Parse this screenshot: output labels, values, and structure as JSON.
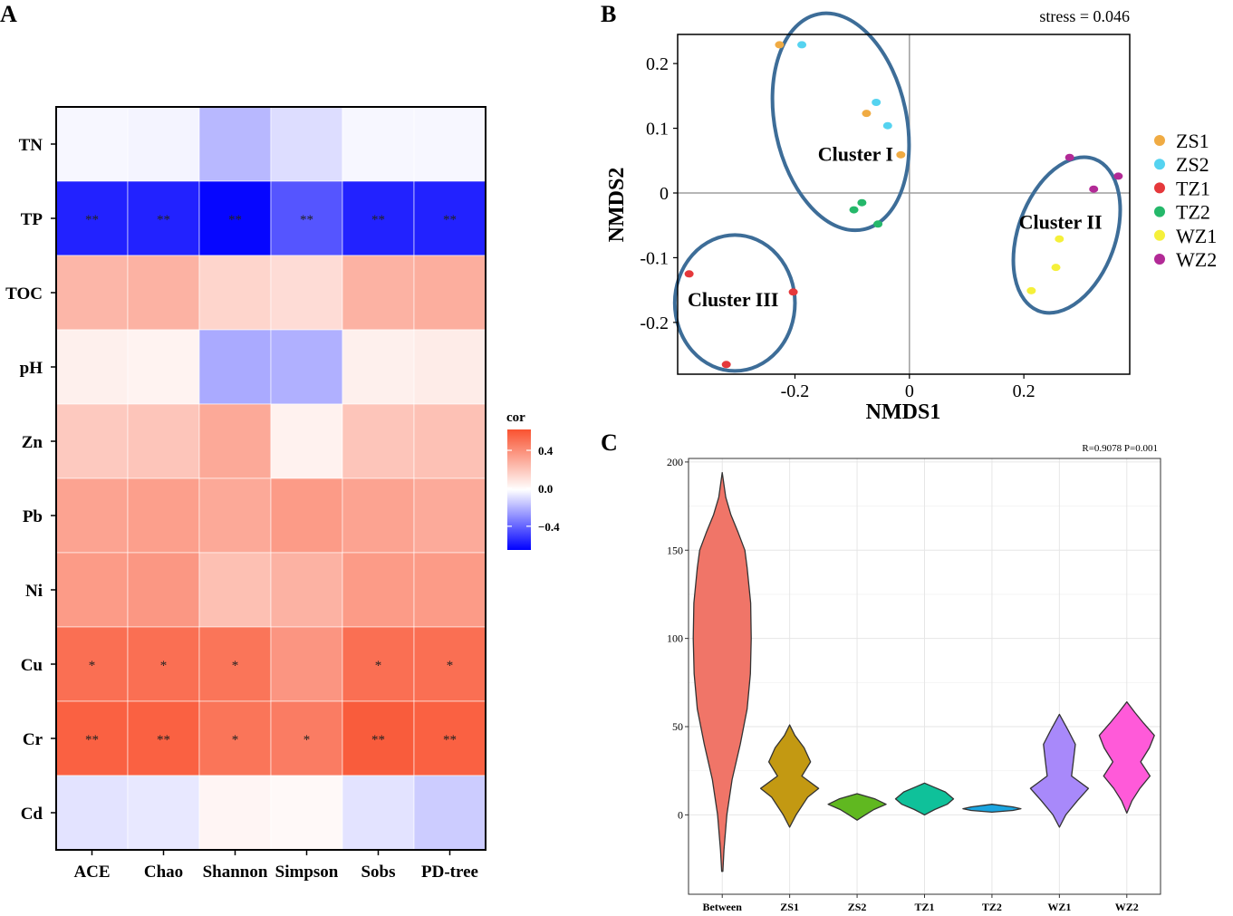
{
  "panels": {
    "a": "A",
    "b": "B",
    "c": "C"
  },
  "colors": {
    "neg": "#0000ff",
    "mid": "#ffffff",
    "pos": "#f95230",
    "ellipse": "#3d6d98",
    "axis_zero": "#9e9e9e",
    "violin_outline": "#333333",
    "grid": "#e6e6e6",
    "star": "#222222"
  },
  "chart_data": [
    {
      "type": "heatmap",
      "panel": "A",
      "columns": [
        "ACE",
        "Chao",
        "Shannon",
        "Simpson",
        "Sobs",
        "PD-tree"
      ],
      "rows": [
        "TN",
        "TP",
        "TOC",
        "pH",
        "Zn",
        "Pb",
        "Ni",
        "Cu",
        "Cr",
        "Cd"
      ],
      "values": [
        [
          -0.03,
          -0.04,
          -0.25,
          -0.12,
          -0.03,
          -0.03
        ],
        [
          -0.78,
          -0.78,
          -0.88,
          -0.6,
          -0.78,
          -0.78
        ],
        [
          0.38,
          0.4,
          0.22,
          0.18,
          0.4,
          0.42
        ],
        [
          0.08,
          0.06,
          -0.3,
          -0.28,
          0.08,
          0.1
        ],
        [
          0.28,
          0.3,
          0.45,
          0.07,
          0.3,
          0.32
        ],
        [
          0.48,
          0.5,
          0.45,
          0.52,
          0.48,
          0.44
        ],
        [
          0.52,
          0.54,
          0.33,
          0.4,
          0.52,
          0.52
        ],
        [
          0.75,
          0.75,
          0.72,
          0.55,
          0.75,
          0.75
        ],
        [
          0.82,
          0.82,
          0.72,
          0.68,
          0.85,
          0.82
        ],
        [
          -0.1,
          -0.08,
          0.05,
          0.03,
          -0.1,
          -0.18
        ]
      ],
      "significance": [
        [
          "",
          "",
          "",
          "",
          "",
          ""
        ],
        [
          "**",
          "**",
          "**",
          "**",
          "**",
          "**"
        ],
        [
          "",
          "",
          "",
          "",
          "",
          ""
        ],
        [
          "",
          "",
          "",
          "",
          "",
          ""
        ],
        [
          "",
          "",
          "",
          "",
          "",
          ""
        ],
        [
          "",
          "",
          "",
          "",
          "",
          ""
        ],
        [
          "",
          "",
          "",
          "",
          "",
          ""
        ],
        [
          "*",
          "*",
          "*",
          "",
          "*",
          "*"
        ],
        [
          "**",
          "**",
          "*",
          "*",
          "**",
          "**"
        ],
        [
          "",
          "",
          "",
          "",
          "",
          ""
        ]
      ],
      "legend": {
        "title": "cor",
        "range": [
          -0.65,
          0.62
        ],
        "ticks": [
          0.4,
          0.0,
          -0.4
        ],
        "tick_labels": [
          "0.4",
          "0.0",
          "−0.4"
        ]
      }
    },
    {
      "type": "scatter",
      "panel": "B",
      "xlabel": "NMDS1",
      "ylabel": "NMDS2",
      "annotation": "stress = 0.046",
      "xlim": [
        -0.405,
        0.385
      ],
      "ylim": [
        -0.28,
        0.245
      ],
      "xticks": [
        -0.2,
        0.0,
        0.2
      ],
      "xtick_labels": [
        "-0.2",
        "0",
        "0.2"
      ],
      "yticks": [
        0.2,
        0.1,
        0.0,
        -0.1,
        -0.2
      ],
      "ytick_labels": [
        "0.2",
        "0.1",
        "0",
        "-0.1",
        "-0.2"
      ],
      "legend_position": "right",
      "series": [
        {
          "name": "ZS1",
          "color": "#f0ab43",
          "points": [
            [
              -0.227,
              0.229
            ],
            [
              -0.075,
              0.123
            ],
            [
              -0.015,
              0.059
            ]
          ]
        },
        {
          "name": "ZS2",
          "color": "#55d3f0",
          "points": [
            [
              -0.188,
              0.229
            ],
            [
              -0.058,
              0.14
            ],
            [
              -0.038,
              0.104
            ]
          ]
        },
        {
          "name": "TZ1",
          "color": "#e5383b",
          "points": [
            [
              -0.385,
              -0.125
            ],
            [
              -0.203,
              -0.153
            ],
            [
              -0.32,
              -0.265
            ]
          ]
        },
        {
          "name": "TZ2",
          "color": "#25b86a",
          "points": [
            [
              -0.083,
              -0.015
            ],
            [
              -0.097,
              -0.026
            ],
            [
              -0.055,
              -0.048
            ]
          ]
        },
        {
          "name": "WZ1",
          "color": "#f5f03a",
          "points": [
            [
              0.262,
              -0.071
            ],
            [
              0.256,
              -0.115
            ],
            [
              0.213,
              -0.151
            ]
          ]
        },
        {
          "name": "WZ2",
          "color": "#b22a96",
          "points": [
            [
              0.28,
              0.055
            ],
            [
              0.322,
              0.006
            ],
            [
              0.365,
              0.026
            ]
          ]
        }
      ],
      "clusters": [
        {
          "label": "Cluster I",
          "center": [
            -0.12,
            0.11
          ],
          "rx": 0.115,
          "ry": 0.17,
          "angle_deg": -12
        },
        {
          "label": "Cluster II",
          "center": [
            0.275,
            -0.065
          ],
          "rx": 0.085,
          "ry": 0.125,
          "angle_deg": 20
        },
        {
          "label": "Cluster III",
          "center": [
            -0.305,
            -0.17
          ],
          "rx": 0.105,
          "ry": 0.105,
          "angle_deg": 0
        }
      ]
    },
    {
      "type": "violin",
      "panel": "C",
      "annotation": "R=0.9078  P=0.001",
      "ylim": [
        -45,
        202
      ],
      "yticks": [
        0,
        50,
        100,
        150,
        200
      ],
      "ytick_labels": [
        "0",
        "50",
        "100",
        "150",
        "200"
      ],
      "categories": [
        "Between",
        "ZS1",
        "ZS2",
        "TZ1",
        "TZ2",
        "WZ1",
        "WZ2"
      ],
      "series": [
        {
          "name": "Between",
          "color": "#f07568",
          "min": -32,
          "max": 194,
          "profile": [
            [
              -32,
              0.02
            ],
            [
              -20,
              0.06
            ],
            [
              0,
              0.16
            ],
            [
              20,
              0.34
            ],
            [
              40,
              0.62
            ],
            [
              60,
              0.86
            ],
            [
              80,
              0.97
            ],
            [
              100,
              1.0
            ],
            [
              120,
              0.98
            ],
            [
              140,
              0.86
            ],
            [
              150,
              0.78
            ],
            [
              160,
              0.55
            ],
            [
              170,
              0.3
            ],
            [
              180,
              0.12
            ],
            [
              194,
              0.0
            ]
          ]
        },
        {
          "name": "ZS1",
          "color": "#c39912",
          "min": -7,
          "max": 51,
          "profile": [
            [
              -7,
              0.0
            ],
            [
              0,
              0.22
            ],
            [
              10,
              0.62
            ],
            [
              15,
              1.0
            ],
            [
              22,
              0.42
            ],
            [
              30,
              0.72
            ],
            [
              38,
              0.5
            ],
            [
              45,
              0.18
            ],
            [
              51,
              0.0
            ]
          ]
        },
        {
          "name": "ZS2",
          "color": "#60b820",
          "min": -3,
          "max": 12,
          "profile": [
            [
              -3,
              0.0
            ],
            [
              0,
              0.28
            ],
            [
              3,
              0.58
            ],
            [
              6,
              1.0
            ],
            [
              9,
              0.62
            ],
            [
              12,
              0.0
            ]
          ]
        },
        {
          "name": "TZ1",
          "color": "#0fc19a",
          "min": 0,
          "max": 18,
          "profile": [
            [
              0,
              0.0
            ],
            [
              3,
              0.35
            ],
            [
              6,
              0.78
            ],
            [
              9,
              1.0
            ],
            [
              13,
              0.72
            ],
            [
              16,
              0.28
            ],
            [
              18,
              0.0
            ]
          ]
        },
        {
          "name": "TZ2",
          "color": "#1aa5e0",
          "min": 1.5,
          "max": 6,
          "profile": [
            [
              1.5,
              0.0
            ],
            [
              2.5,
              0.72
            ],
            [
              3.5,
              1.0
            ],
            [
              4.5,
              0.72
            ],
            [
              6,
              0.0
            ]
          ]
        },
        {
          "name": "WZ1",
          "color": "#a889fa",
          "min": -7,
          "max": 57,
          "profile": [
            [
              -7,
              0.0
            ],
            [
              0,
              0.22
            ],
            [
              8,
              0.62
            ],
            [
              15,
              1.0
            ],
            [
              22,
              0.42
            ],
            [
              30,
              0.48
            ],
            [
              40,
              0.55
            ],
            [
              48,
              0.3
            ],
            [
              57,
              0.0
            ]
          ]
        },
        {
          "name": "WZ2",
          "color": "#ff5ad9",
          "min": 1,
          "max": 64,
          "profile": [
            [
              1,
              0.0
            ],
            [
              8,
              0.18
            ],
            [
              15,
              0.45
            ],
            [
              22,
              0.8
            ],
            [
              30,
              0.48
            ],
            [
              38,
              0.78
            ],
            [
              45,
              0.95
            ],
            [
              52,
              0.58
            ],
            [
              58,
              0.28
            ],
            [
              64,
              0.0
            ]
          ]
        }
      ]
    }
  ]
}
